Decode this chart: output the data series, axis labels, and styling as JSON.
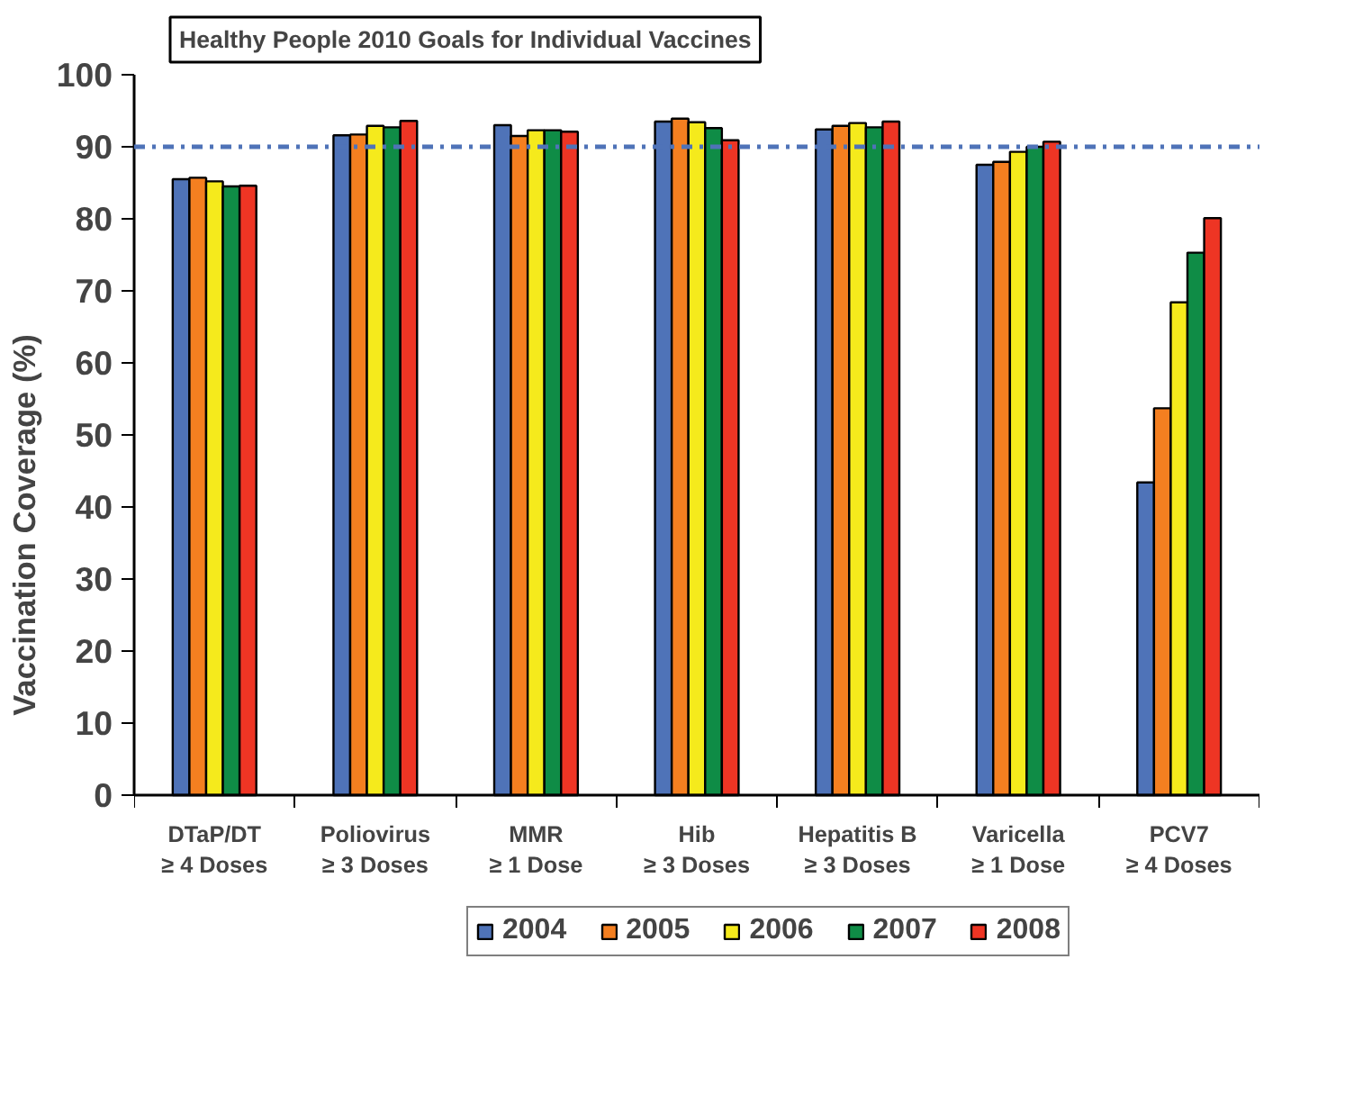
{
  "chart_data": {
    "type": "bar",
    "categories": [
      "DTaP/DT\n≥ 4 Doses",
      "Poliovirus\n≥ 3 Doses",
      "MMR\n≥ 1 Dose",
      "Hib\n≥ 3 Doses",
      "Hepatitis B\n≥ 3 Doses",
      "Varicella\n≥ 1 Dose",
      "PCV7\n≥ 4 Doses"
    ],
    "ylabel": "Vaccination Coverage (%)",
    "series": [
      {
        "name": "2004",
        "color": "#4f73b8",
        "values": [
          85.5,
          91.6,
          93.0,
          93.5,
          92.4,
          87.5,
          43.4
        ]
      },
      {
        "name": "2005",
        "color": "#f47f20",
        "values": [
          85.7,
          91.7,
          91.5,
          93.9,
          92.9,
          87.9,
          53.7
        ]
      },
      {
        "name": "2006",
        "color": "#f5ea1c",
        "values": [
          85.2,
          92.9,
          92.3,
          93.4,
          93.3,
          89.3,
          68.4
        ]
      },
      {
        "name": "2007",
        "color": "#0f8c46",
        "values": [
          84.5,
          92.7,
          92.3,
          92.6,
          92.7,
          90.0,
          75.3
        ]
      },
      {
        "name": "2008",
        "color": "#ee3524",
        "values": [
          84.6,
          93.6,
          92.1,
          90.9,
          93.5,
          90.7,
          80.1
        ]
      }
    ],
    "ylim": [
      0,
      100
    ],
    "yticks": [
      0,
      10,
      20,
      30,
      40,
      50,
      60,
      70,
      80,
      90,
      100
    ],
    "ref_lines": [
      {
        "axis": "y",
        "value": 90,
        "color": "#4f73b8",
        "line_style": "dashdot"
      }
    ],
    "annotations": [
      "Healthy People 2010 Goals for Individual Vaccines"
    ],
    "grid": false,
    "legend": "bottom"
  }
}
